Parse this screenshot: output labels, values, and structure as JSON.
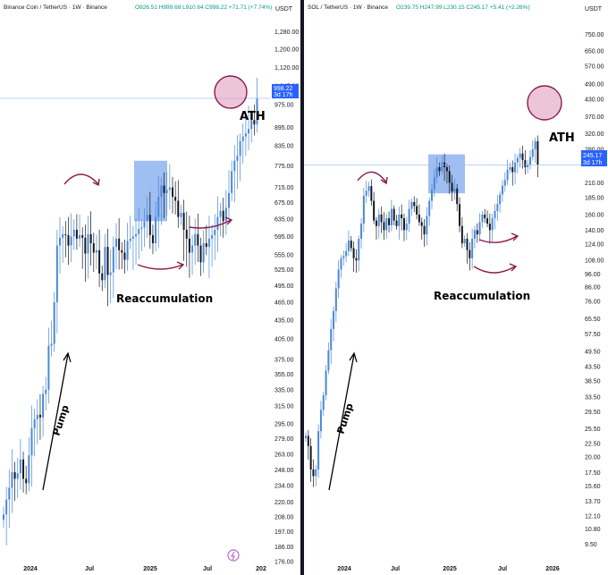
{
  "chart_data": [
    {
      "type": "candlestick",
      "symbol_line": "Binance Coin / TetherUS · 1W · Binance",
      "ohlc_label": "O926.51 H999.68 L910.64 C998.22 +71.71 (+7.74%)",
      "currency": "USDT",
      "y_scale": "log",
      "ylim": [
        176,
        1340
      ],
      "y_ticks": [
        "1,280.00",
        "1,200.00",
        "1,120.00",
        "1,045.00",
        "975.00",
        "895.00",
        "835.00",
        "775.00",
        "715.00",
        "675.00",
        "635.00",
        "595.00",
        "555.00",
        "525.00",
        "495.00",
        "465.00",
        "435.00",
        "405.00",
        "375.00",
        "355.00",
        "335.00",
        "315.00",
        "295.00",
        "279.00",
        "263.00",
        "248.00",
        "234.00",
        "220.00",
        "208.00",
        "197.00",
        "186.00",
        "176.00"
      ],
      "x_ticks": [
        "2024",
        "Jul",
        "2025",
        "Jul",
        "202"
      ],
      "price_label": {
        "value": "998.22",
        "countdown": "3d 17h"
      },
      "annotations": [
        "ATH",
        "Reaccumulation",
        "Pump"
      ],
      "highlight_range": {
        "from": "2024-11-25",
        "to": "2025-02-17",
        "low": 630,
        "high": 790
      },
      "weekly_closes": [
        210,
        222,
        232,
        246,
        240,
        245,
        258,
        240,
        236,
        262,
        290,
        300,
        305,
        302,
        330,
        335,
        395,
        398,
        465,
        575,
        592,
        600,
        598,
        575,
        595,
        610,
        590,
        598,
        592,
        558,
        600,
        580,
        560,
        565,
        518,
        505,
        572,
        515,
        520,
        572,
        590,
        565,
        560,
        545,
        585,
        590,
        595,
        600,
        612,
        615,
        630,
        645,
        598,
        580,
        640,
        690,
        720,
        700,
        708,
        715,
        690,
        680,
        640,
        650,
        610,
        590,
        560,
        575,
        600,
        575,
        540,
        580,
        572,
        590,
        598,
        610,
        640,
        655,
        630,
        662,
        700,
        760,
        790,
        805,
        850,
        865,
        875,
        890,
        920,
        905,
        998
      ]
    },
    {
      "type": "candlestick",
      "symbol_line": "SOL / TetherUS · 1W · Binance",
      "ohlc_label": "O239.75 H247.99 L230.15 C245.17 +5.41 (+2.26%)",
      "currency": "USDT",
      "y_scale": "log",
      "ylim": [
        9.1,
        850
      ],
      "y_ticks": [
        "750.00",
        "650.00",
        "570.00",
        "490.00",
        "430.00",
        "370.00",
        "320.00",
        "280.00",
        "210.00",
        "185.00",
        "160.00",
        "140.00",
        "124.00",
        "108.00",
        "96.00",
        "86.00",
        "76.00",
        "65.50",
        "57.50",
        "49.50",
        "43.50",
        "38.50",
        "33.50",
        "29.50",
        "25.50",
        "22.50",
        "20.00",
        "17.50",
        "15.60",
        "13.70",
        "12.10",
        "10.80",
        "9.50"
      ],
      "x_ticks": [
        "2024",
        "Jul",
        "2025",
        "Jul",
        "2026"
      ],
      "price_label": {
        "value": "245.17",
        "countdown": "3d 17h"
      },
      "annotations": [
        "ATH",
        "Reaccumulation",
        "Pump"
      ],
      "highlight_range": {
        "from": "2024-11-11",
        "to": "2025-02-03",
        "low": 192,
        "high": 268
      },
      "weekly_closes": [
        24,
        22,
        18,
        17,
        18,
        25,
        30,
        34,
        42,
        50,
        60,
        70,
        85,
        100,
        110,
        112,
        117,
        128,
        120,
        110,
        108,
        130,
        148,
        188,
        196,
        204,
        180,
        152,
        145,
        160,
        150,
        140,
        155,
        146,
        168,
        152,
        145,
        160,
        155,
        140,
        148,
        168,
        178,
        172,
        160,
        150,
        145,
        135,
        158,
        180,
        198,
        220,
        240,
        232,
        250,
        240,
        232,
        210,
        195,
        200,
        175,
        145,
        125,
        130,
        118,
        110,
        130,
        140,
        135,
        150,
        160,
        155,
        148,
        140,
        155,
        165,
        175,
        190,
        205,
        215,
        235,
        240,
        230,
        250,
        260,
        270,
        255,
        240,
        245,
        262,
        280,
        300,
        245
      ]
    }
  ]
}
